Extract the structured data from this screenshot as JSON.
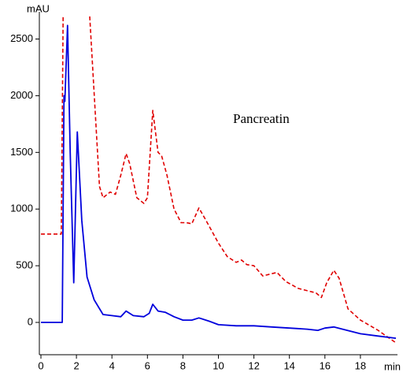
{
  "chart_data": {
    "type": "line",
    "annotation": "Pancreatin",
    "y_label": "mAU",
    "x_label": "min",
    "xlim": [
      0,
      20
    ],
    "ylim": [
      -285,
      2740
    ],
    "xticks": [
      0,
      2,
      4,
      6,
      8,
      10,
      12,
      14,
      16,
      18
    ],
    "yticks": [
      0,
      500,
      1000,
      1500,
      2000,
      2500
    ],
    "series": [
      {
        "color": "#e00000",
        "dash": true,
        "x": [
          0,
          1.15,
          1.25,
          2,
          2.75,
          3.3,
          3.5,
          3.9,
          4.2,
          4.5,
          4.8,
          5.0,
          5.4,
          5.8,
          6.0,
          6.3,
          6.6,
          6.8,
          7.1,
          7.5,
          7.9,
          8.2,
          8.5,
          8.9,
          9.3,
          10,
          10.5,
          11,
          11.3,
          11.6,
          12,
          12.5,
          13,
          13.3,
          13.8,
          14.5,
          15.5,
          15.8,
          16.1,
          16.5,
          16.8,
          17.3,
          18,
          19,
          20
        ],
        "values": [
          780,
          780,
          2700,
          null,
          2700,
          1200,
          1100,
          1150,
          1130,
          1300,
          1490,
          1400,
          1100,
          1050,
          1100,
          1870,
          1500,
          1470,
          1300,
          1000,
          880,
          880,
          870,
          1010,
          900,
          700,
          580,
          530,
          550,
          510,
          500,
          410,
          430,
          440,
          360,
          300,
          260,
          220,
          350,
          460,
          390,
          120,
          20,
          -70,
          -180
        ]
      },
      {
        "color": "#0000dd",
        "dash": false,
        "x": [
          0,
          1.2,
          1.3,
          1.35,
          1.5,
          1.65,
          1.85,
          2.05,
          2.3,
          2.6,
          3,
          3.5,
          4,
          4.5,
          4.8,
          5.2,
          5.8,
          6.1,
          6.3,
          6.6,
          7,
          7.5,
          8,
          8.5,
          8.9,
          9.5,
          10,
          11,
          12,
          13,
          14,
          15,
          15.6,
          16,
          16.5,
          17,
          18,
          19,
          20
        ],
        "values": [
          0,
          0,
          2000,
          1950,
          2620,
          1500,
          350,
          1680,
          900,
          400,
          200,
          70,
          60,
          50,
          100,
          60,
          50,
          80,
          160,
          100,
          90,
          50,
          20,
          20,
          40,
          10,
          -20,
          -30,
          -30,
          -40,
          -50,
          -60,
          -70,
          -50,
          -40,
          -60,
          -100,
          -120,
          -140
        ]
      }
    ]
  }
}
